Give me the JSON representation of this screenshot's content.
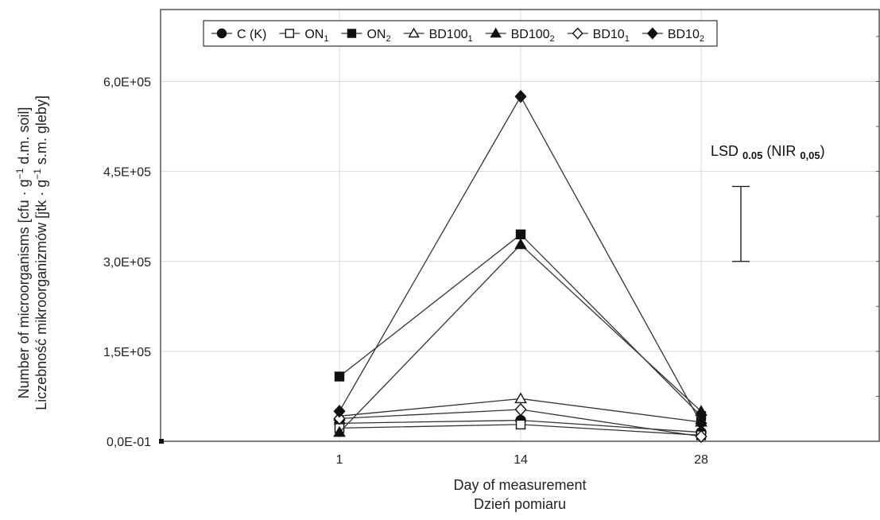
{
  "chart_data": {
    "type": "line",
    "title": "",
    "xlabel": [
      "Day of measurement",
      "Dzień pomiaru"
    ],
    "ylabel": [
      "Number of microorganisms [cfu · g⁻¹ d.m. soil]",
      "Liczebność mikroorganizmów [jtk · g⁻¹ s.m. gleby]"
    ],
    "categories": [
      "1",
      "14",
      "28"
    ],
    "ylim": [
      0,
      720000
    ],
    "yticks": [
      0,
      150000,
      300000,
      450000,
      600000
    ],
    "ytick_labels": [
      "0,0E-01",
      "1,5E+05",
      "3,0E+05",
      "4,5E+05",
      "6,0E+05"
    ],
    "grid": true,
    "legend_position": "top",
    "series": [
      {
        "name": "C (K)",
        "marker": "circle-filled",
        "values": [
          30000,
          35000,
          15000
        ]
      },
      {
        "name": "ON₁",
        "marker": "square-open",
        "values": [
          22000,
          28000,
          10000
        ]
      },
      {
        "name": "ON₂",
        "marker": "square-filled",
        "values": [
          108000,
          345000,
          42000
        ]
      },
      {
        "name": "BD100₁",
        "marker": "triangle-open",
        "values": [
          42000,
          71000,
          32000
        ]
      },
      {
        "name": "BD100₂",
        "marker": "triangle-filled",
        "values": [
          15000,
          328000,
          50000
        ]
      },
      {
        "name": "BD10₁",
        "marker": "diamond-open",
        "values": [
          38000,
          53000,
          8000
        ]
      },
      {
        "name": "BD10₂",
        "marker": "diamond-filled",
        "values": [
          50000,
          575000,
          30000
        ]
      }
    ],
    "lsd": {
      "label": "LSD 0.05 (NIR 0,05)",
      "low": 300000,
      "high": 425000
    }
  }
}
